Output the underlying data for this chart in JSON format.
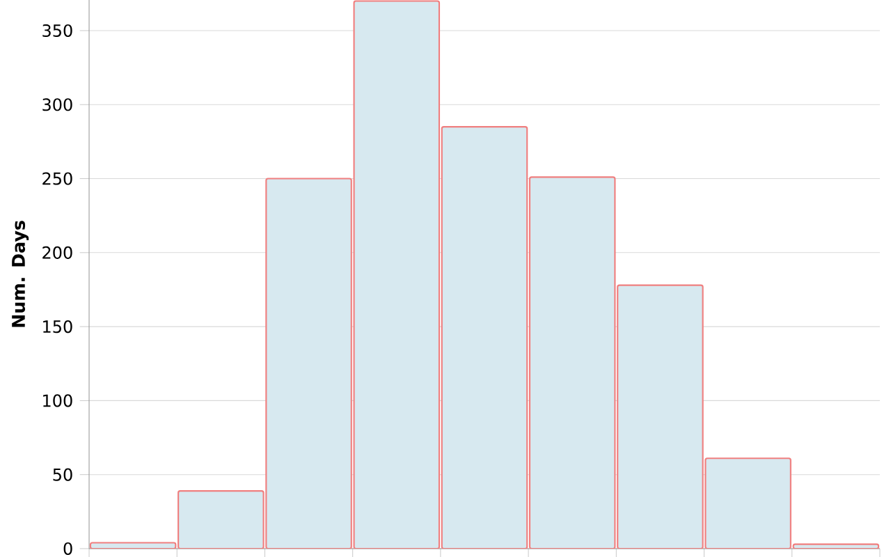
{
  "chart_data": {
    "type": "bar",
    "ylabel": "Num. Days",
    "categories": [
      null,
      null,
      null,
      null,
      null,
      null,
      null,
      null,
      null
    ],
    "values": [
      4,
      39,
      250,
      370,
      285,
      251,
      178,
      61,
      3
    ],
    "color": "#d7e9f0",
    "ylim": [
      0,
      370.7
    ],
    "yticks": [
      0,
      50,
      100,
      150,
      200,
      250,
      300,
      350
    ],
    "grid": "y",
    "tick_labels": "y"
  }
}
